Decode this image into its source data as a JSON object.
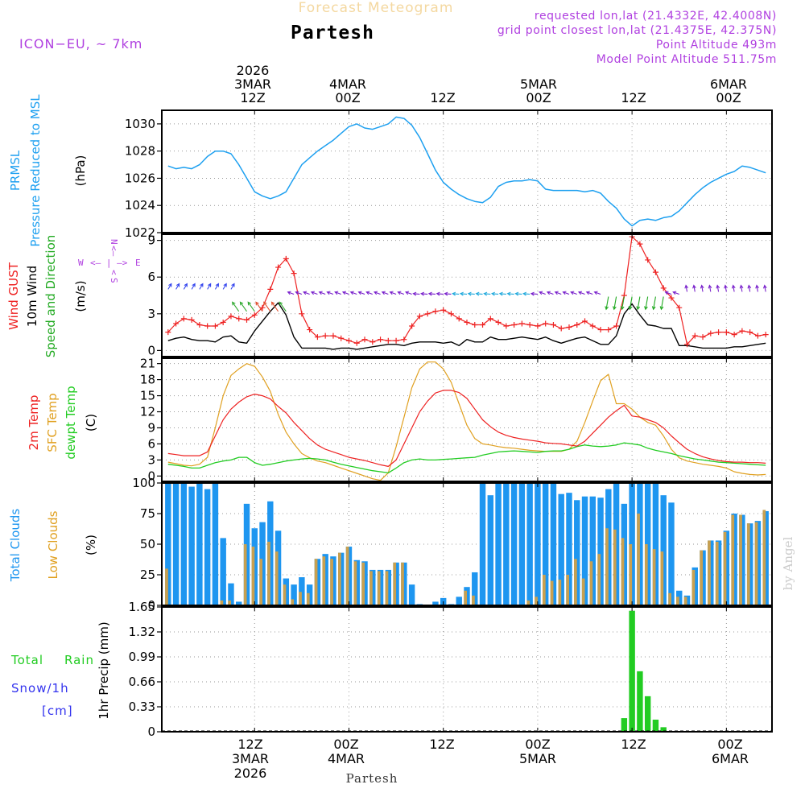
{
  "colors": {
    "pressure": "#1ea0f0",
    "gust": "#ee2222",
    "wind": "#000000",
    "direction": "#22bb22",
    "temp2m": "#ee2222",
    "sfc": "#e0a020",
    "dewpt": "#22cc22",
    "total_clouds": "#1e96f0",
    "low_clouds": "#c8a050",
    "rain": "#22cc22",
    "snow": "#3333ee",
    "header_purple": "#b040e0",
    "watermark": "#cccccc"
  },
  "header": {
    "subtitle": "Forecast Meteogram",
    "title": "Partesh",
    "model": "ICON−EU, ~ 7km",
    "requested": "requested lon,lat (21.4332E, 42.4008N)",
    "closest": "grid point closest lon,lat (21.4375E, 42.375N)",
    "point_alt": "Point Altitude 493m",
    "model_alt": "Model Point Altitude 511.75m"
  },
  "top_axis": {
    "year": "2026",
    "labels": [
      {
        "line1": "3MAR",
        "line2": "12Z",
        "hour": 12
      },
      {
        "line1": "4MAR",
        "line2": "00Z",
        "hour": 24
      },
      {
        "line1": "",
        "line2": "12Z",
        "hour": 36
      },
      {
        "line1": "5MAR",
        "line2": "00Z",
        "hour": 48
      },
      {
        "line1": "",
        "line2": "12Z",
        "hour": 60
      },
      {
        "line1": "6MAR",
        "line2": "00Z",
        "hour": 72
      }
    ]
  },
  "bottom_axis": {
    "labels": [
      {
        "line1": "12Z",
        "line2": "3MAR",
        "line3": "2026",
        "hour": 12
      },
      {
        "line1": "00Z",
        "line2": "4MAR",
        "line3": "",
        "hour": 24
      },
      {
        "line1": "12Z",
        "line2": "",
        "line3": "",
        "hour": 36
      },
      {
        "line1": "00Z",
        "line2": "5MAR",
        "line3": "",
        "hour": 48
      },
      {
        "line1": "12Z",
        "line2": "",
        "line3": "",
        "hour": 60
      },
      {
        "line1": "00Z",
        "line2": "6MAR",
        "line3": "",
        "hour": 72
      }
    ],
    "station": "Partesh"
  },
  "watermark": "by Angel",
  "chart_data": [
    {
      "type": "line",
      "title": "Pressure Reduced to MSL",
      "labels": {
        "a": "PRMSL",
        "b": "Pressure Reduced to MSL",
        "unit": "(hPa)"
      },
      "ylim": [
        1022,
        1031
      ],
      "ticks": [
        1022,
        1024,
        1026,
        1028,
        1030
      ],
      "x_hours": [
        1,
        2,
        3,
        4,
        5,
        6,
        7,
        8,
        9,
        10,
        11,
        12,
        13,
        14,
        15,
        16,
        17,
        18,
        19,
        20,
        21,
        22,
        23,
        24,
        25,
        26,
        27,
        28,
        29,
        30,
        31,
        32,
        33,
        34,
        35,
        36,
        37,
        38,
        39,
        40,
        41,
        42,
        43,
        44,
        45,
        46,
        47,
        48,
        49,
        50,
        51,
        52,
        53,
        54,
        55,
        56,
        57,
        58,
        59,
        60,
        61,
        62,
        63,
        64,
        65,
        66,
        67,
        68,
        69,
        70,
        71,
        72,
        73,
        74,
        75,
        76,
        77
      ],
      "series": [
        {
          "name": "PRMSL",
          "values": [
            1026.9,
            1026.7,
            1026.8,
            1026.7,
            1027.0,
            1027.6,
            1028.0,
            1028.0,
            1027.8,
            1027.0,
            1026.0,
            1025.0,
            1024.7,
            1024.5,
            1024.7,
            1025.0,
            1026.0,
            1027.0,
            1027.5,
            1028.0,
            1028.4,
            1028.8,
            1029.3,
            1029.8,
            1030.0,
            1029.7,
            1029.6,
            1029.8,
            1030.0,
            1030.5,
            1030.4,
            1029.9,
            1029.0,
            1027.8,
            1026.6,
            1025.7,
            1025.2,
            1024.8,
            1024.5,
            1024.3,
            1024.2,
            1024.6,
            1025.4,
            1025.7,
            1025.8,
            1025.8,
            1025.9,
            1025.8,
            1025.2,
            1025.1,
            1025.1,
            1025.1,
            1025.1,
            1025.0,
            1025.1,
            1024.9,
            1024.3,
            1023.8,
            1023.0,
            1022.5,
            1022.9,
            1023.0,
            1022.9,
            1023.1,
            1023.2,
            1023.6,
            1024.2,
            1024.8,
            1025.3,
            1025.7,
            1026.0,
            1026.3,
            1026.5,
            1026.9,
            1026.8,
            1026.6,
            1026.4
          ]
        }
      ]
    },
    {
      "type": "line",
      "title": "Wind",
      "labels": {
        "a": "Wind GUST",
        "b": "10m Wind",
        "c": "Speed and Direction",
        "unit": "(m/s)"
      },
      "compass": {
        "n": "N",
        "s": "S",
        "e": "E",
        "w": "W"
      },
      "ylim": [
        -0.5,
        9.5
      ],
      "ticks": [
        0,
        3,
        6,
        9
      ],
      "x_hours": [
        1,
        2,
        3,
        4,
        5,
        6,
        7,
        8,
        9,
        10,
        11,
        12,
        13,
        14,
        15,
        16,
        17,
        18,
        19,
        20,
        21,
        22,
        23,
        24,
        25,
        26,
        27,
        28,
        29,
        30,
        31,
        32,
        33,
        34,
        35,
        36,
        37,
        38,
        39,
        40,
        41,
        42,
        43,
        44,
        45,
        46,
        47,
        48,
        49,
        50,
        51,
        52,
        53,
        54,
        55,
        56,
        57,
        58,
        59,
        60,
        61,
        62,
        63,
        64,
        65,
        66,
        67,
        68,
        69,
        70,
        71,
        72,
        73,
        74,
        75,
        76,
        77
      ],
      "series": [
        {
          "name": "Wind GUST",
          "values": [
            1.5,
            2.2,
            2.6,
            2.5,
            2.1,
            2.0,
            2.0,
            2.3,
            2.8,
            2.6,
            2.5,
            2.9,
            3.5,
            5.0,
            6.8,
            7.5,
            6.3,
            3.0,
            1.7,
            1.1,
            1.2,
            1.2,
            1.0,
            0.8,
            0.6,
            0.9,
            0.7,
            0.9,
            0.8,
            0.8,
            0.9,
            2.0,
            2.8,
            3.0,
            3.2,
            3.3,
            3.0,
            2.6,
            2.3,
            2.1,
            2.1,
            2.6,
            2.3,
            2.0,
            2.1,
            2.2,
            2.1,
            2.0,
            2.2,
            2.1,
            1.8,
            1.9,
            2.1,
            2.4,
            2.0,
            1.7,
            1.7,
            2.0,
            4.5,
            9.3,
            8.7,
            7.4,
            6.4,
            5.1,
            4.3,
            3.5,
            0.5,
            1.2,
            1.1,
            1.4,
            1.5,
            1.5,
            1.3,
            1.6,
            1.5,
            1.2,
            1.3
          ]
        },
        {
          "name": "10m Wind",
          "values": [
            0.8,
            1.0,
            1.1,
            0.9,
            0.8,
            0.8,
            0.7,
            1.1,
            1.2,
            0.7,
            0.6,
            1.6,
            2.4,
            3.2,
            3.9,
            2.9,
            1.1,
            0.2,
            0.2,
            0.2,
            0.2,
            0.1,
            0.2,
            0.2,
            0.1,
            0.2,
            0.3,
            0.4,
            0.5,
            0.5,
            0.4,
            0.6,
            0.7,
            0.7,
            0.7,
            0.6,
            0.7,
            0.4,
            0.9,
            0.7,
            0.7,
            1.1,
            0.9,
            0.9,
            1.0,
            1.1,
            1.0,
            0.9,
            1.1,
            0.8,
            0.6,
            0.8,
            1.0,
            1.1,
            0.8,
            0.5,
            0.5,
            1.2,
            3.0,
            3.8,
            2.9,
            2.1,
            2.0,
            1.8,
            1.8,
            0.4,
            0.4,
            0.3,
            0.2,
            0.2,
            0.2,
            0.2,
            0.3,
            0.3,
            0.4,
            0.5,
            0.6
          ]
        }
      ]
    },
    {
      "type": "line",
      "title": "Temperature",
      "labels": {
        "a": "2m Temp",
        "b": "SFC Temp",
        "c": "dewpt Temp",
        "unit": "(C)"
      },
      "ylim": [
        -1,
        22
      ],
      "ticks": [
        0,
        3,
        6,
        9,
        12,
        15,
        18,
        21
      ],
      "x_hours": [
        1,
        2,
        3,
        4,
        5,
        6,
        7,
        8,
        9,
        10,
        11,
        12,
        13,
        14,
        15,
        16,
        17,
        18,
        19,
        20,
        21,
        22,
        23,
        24,
        25,
        26,
        27,
        28,
        29,
        30,
        31,
        32,
        33,
        34,
        35,
        36,
        37,
        38,
        39,
        40,
        41,
        42,
        43,
        44,
        45,
        46,
        47,
        48,
        49,
        50,
        51,
        52,
        53,
        54,
        55,
        56,
        57,
        58,
        59,
        60,
        61,
        62,
        63,
        64,
        65,
        66,
        67,
        68,
        69,
        70,
        71,
        72,
        73,
        74,
        75,
        76,
        77
      ],
      "series": [
        {
          "name": "2m Temp",
          "values": [
            4.2,
            4.0,
            3.8,
            3.8,
            3.8,
            4.5,
            7.5,
            10.5,
            12.5,
            13.8,
            14.8,
            15.3,
            15.0,
            14.4,
            13.0,
            11.8,
            10.0,
            8.5,
            7.0,
            5.8,
            5.0,
            4.5,
            4.0,
            3.5,
            3.2,
            2.9,
            2.5,
            2.1,
            1.8,
            3.0,
            6.0,
            9.0,
            12.0,
            14.0,
            15.5,
            16.0,
            16.0,
            15.6,
            14.5,
            12.5,
            10.5,
            9.2,
            8.2,
            7.6,
            7.2,
            6.9,
            6.7,
            6.5,
            6.2,
            6.1,
            6.0,
            5.8,
            5.6,
            6.5,
            8.0,
            9.5,
            11.0,
            12.2,
            13.2,
            11.2,
            11.0,
            10.5,
            10.0,
            9.0,
            7.5,
            6.2,
            5.0,
            4.2,
            3.6,
            3.2,
            2.9,
            2.7,
            2.6,
            2.6,
            2.5,
            2.5,
            2.4
          ]
        },
        {
          "name": "SFC Temp",
          "values": [
            2.6,
            2.3,
            2.0,
            1.9,
            2.2,
            3.5,
            9.0,
            15.0,
            18.8,
            20.0,
            21.0,
            20.5,
            18.5,
            15.8,
            11.5,
            8.2,
            6.0,
            4.2,
            3.4,
            2.8,
            2.5,
            2.0,
            1.5,
            1.0,
            0.5,
            0.0,
            -0.5,
            -0.8,
            0.6,
            5.5,
            11.0,
            16.5,
            20.0,
            21.3,
            21.3,
            20.0,
            17.5,
            13.5,
            9.5,
            7.0,
            6.0,
            5.8,
            5.5,
            5.3,
            5.2,
            5.0,
            4.8,
            4.7,
            4.6,
            4.6,
            4.6,
            5.0,
            6.5,
            10.0,
            14.0,
            17.8,
            19.0,
            13.5,
            13.5,
            12.5,
            11.0,
            10.0,
            9.5,
            7.5,
            5.0,
            3.4,
            2.8,
            2.5,
            2.2,
            2.0,
            1.8,
            1.5,
            0.8,
            0.5,
            0.3,
            0.2,
            0.3
          ]
        },
        {
          "name": "dewpt Temp",
          "values": [
            2.2,
            2.0,
            1.8,
            1.5,
            1.5,
            2.0,
            2.5,
            2.8,
            3.0,
            3.5,
            3.5,
            2.5,
            2.0,
            2.2,
            2.5,
            2.8,
            3.0,
            3.2,
            3.3,
            3.2,
            3.0,
            2.6,
            2.2,
            1.9,
            1.6,
            1.3,
            1.0,
            0.8,
            0.6,
            1.5,
            2.5,
            3.0,
            3.2,
            3.0,
            3.0,
            3.1,
            3.2,
            3.3,
            3.4,
            3.5,
            3.9,
            4.2,
            4.5,
            4.6,
            4.7,
            4.6,
            4.5,
            4.4,
            4.6,
            4.7,
            4.7,
            5.0,
            5.5,
            5.8,
            5.6,
            5.5,
            5.6,
            5.8,
            6.2,
            6.0,
            5.8,
            5.2,
            4.8,
            4.5,
            4.2,
            3.8,
            3.5,
            3.2,
            3.0,
            2.8,
            2.6,
            2.5,
            2.4,
            2.3,
            2.2,
            2.1,
            2.0
          ]
        }
      ]
    },
    {
      "type": "bar",
      "title": "Clouds",
      "labels": {
        "a": "Total Clouds",
        "b": "Low Clouds",
        "unit": "(%)"
      },
      "ylim": [
        0,
        100
      ],
      "ticks": [
        0,
        25,
        50,
        75,
        100
      ],
      "x_hours": [
        1,
        2,
        3,
        4,
        5,
        6,
        7,
        8,
        9,
        10,
        11,
        12,
        13,
        14,
        15,
        16,
        17,
        18,
        19,
        20,
        21,
        22,
        23,
        24,
        25,
        26,
        27,
        28,
        29,
        30,
        31,
        32,
        33,
        34,
        35,
        36,
        37,
        38,
        39,
        40,
        41,
        42,
        43,
        44,
        45,
        46,
        47,
        48,
        49,
        50,
        51,
        52,
        53,
        54,
        55,
        56,
        57,
        58,
        59,
        60,
        61,
        62,
        63,
        64,
        65,
        66,
        67,
        68,
        69,
        70,
        71,
        72,
        73,
        74,
        75,
        76,
        77
      ],
      "series": [
        {
          "name": "Total Clouds",
          "values": [
            100,
            100,
            100,
            97,
            100,
            95,
            100,
            55,
            18,
            3,
            83,
            63,
            68,
            85,
            61,
            22,
            17,
            23,
            17,
            38,
            42,
            40,
            43,
            48,
            37,
            36,
            29,
            29,
            29,
            35,
            35,
            17,
            1,
            0,
            3,
            6,
            1,
            7,
            15,
            27,
            100,
            90,
            100,
            100,
            100,
            100,
            100,
            100,
            100,
            100,
            91,
            92,
            86,
            89,
            89,
            88,
            95,
            100,
            83,
            100,
            100,
            100,
            100,
            90,
            84,
            12,
            8,
            31,
            45,
            53,
            53,
            61,
            75,
            74,
            67,
            69,
            77
          ]
        },
        {
          "name": "Low Clouds",
          "values": [
            30,
            0,
            0,
            0,
            0,
            0,
            0,
            4,
            4,
            0,
            50,
            48,
            38,
            52,
            44,
            17,
            5,
            11,
            10,
            38,
            40,
            38,
            43,
            48,
            36,
            35,
            28,
            28,
            28,
            35,
            35,
            0,
            0,
            0,
            0,
            0,
            0,
            0,
            12,
            8,
            0,
            0,
            0,
            0,
            0,
            0,
            4,
            7,
            25,
            20,
            21,
            25,
            38,
            22,
            36,
            42,
            63,
            62,
            55,
            50,
            75,
            50,
            46,
            44,
            10,
            7,
            7,
            29,
            45,
            53,
            52,
            60,
            74,
            74,
            67,
            68,
            78
          ]
        }
      ]
    },
    {
      "type": "bar",
      "title": "Precipitation",
      "labels": {
        "a": "Total",
        "b": "Rain",
        "c": "Snow/1h",
        "d": "[cm]",
        "unit": "1hr Precip (mm)"
      },
      "ylim": [
        0,
        1.65
      ],
      "ticks": [
        "0",
        "0.33",
        "0.66",
        "0.99",
        "1.32",
        "1.65"
      ],
      "tick_values": [
        0,
        0.33,
        0.66,
        0.99,
        1.32,
        1.65
      ],
      "x_hours": [
        59,
        60,
        61,
        62,
        63,
        64
      ],
      "series": [
        {
          "name": "Total Rain",
          "values": [
            0.18,
            1.6,
            0.8,
            0.47,
            0.16,
            0.06
          ]
        }
      ]
    }
  ]
}
